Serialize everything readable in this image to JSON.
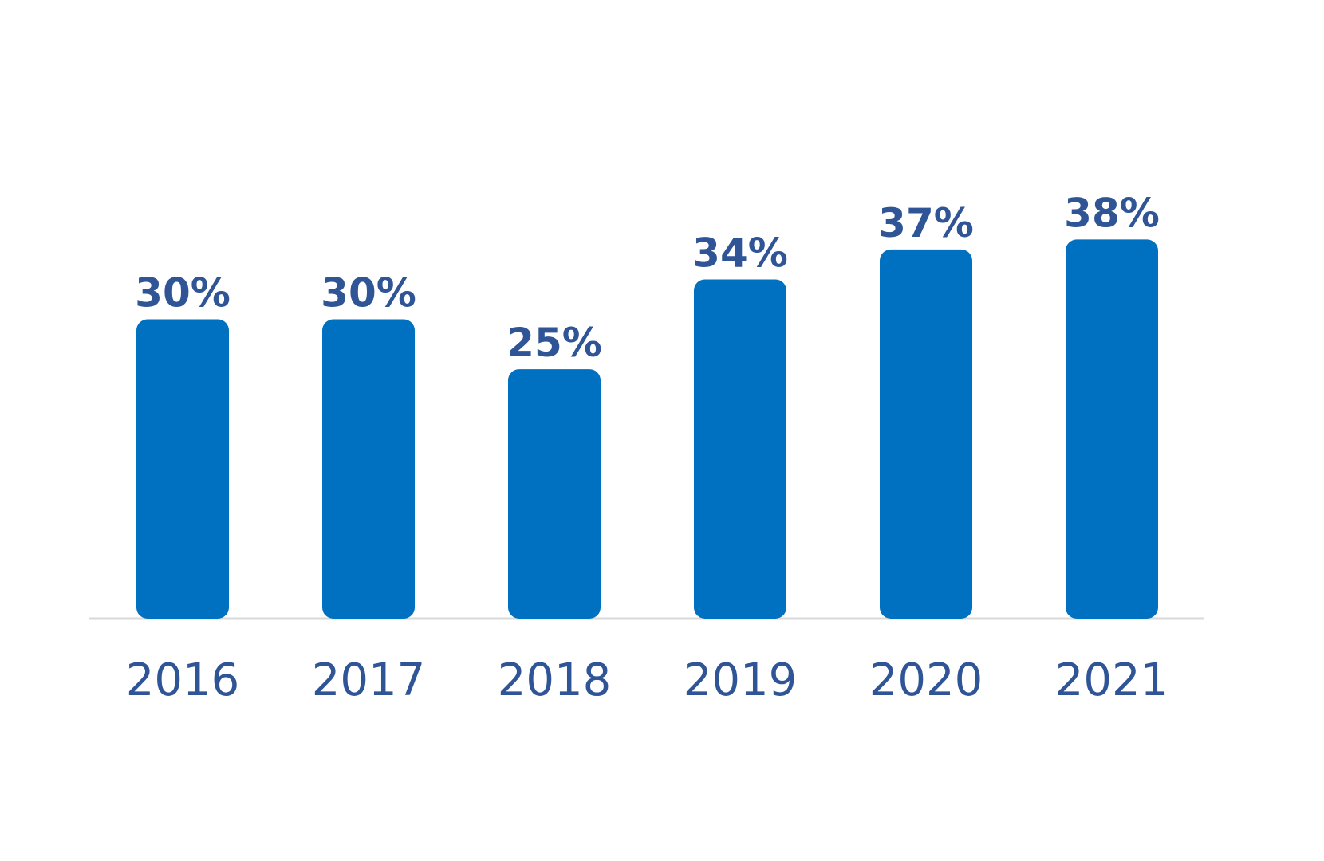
{
  "chart_data": {
    "type": "bar",
    "categories": [
      "2016",
      "2017",
      "2018",
      "2019",
      "2020",
      "2021"
    ],
    "values": [
      30,
      30,
      25,
      34,
      37,
      38
    ],
    "value_labels": [
      "30%",
      "30%",
      "25%",
      "34%",
      "37%",
      "38%"
    ],
    "unit": "%",
    "title": "",
    "xlabel": "",
    "ylabel": "",
    "ylim": [
      0,
      62
    ],
    "grid": false,
    "legend": "none",
    "colors": {
      "bar": "#0070C0",
      "label": "#2F5597",
      "baseline": "#D9D9D9"
    }
  }
}
